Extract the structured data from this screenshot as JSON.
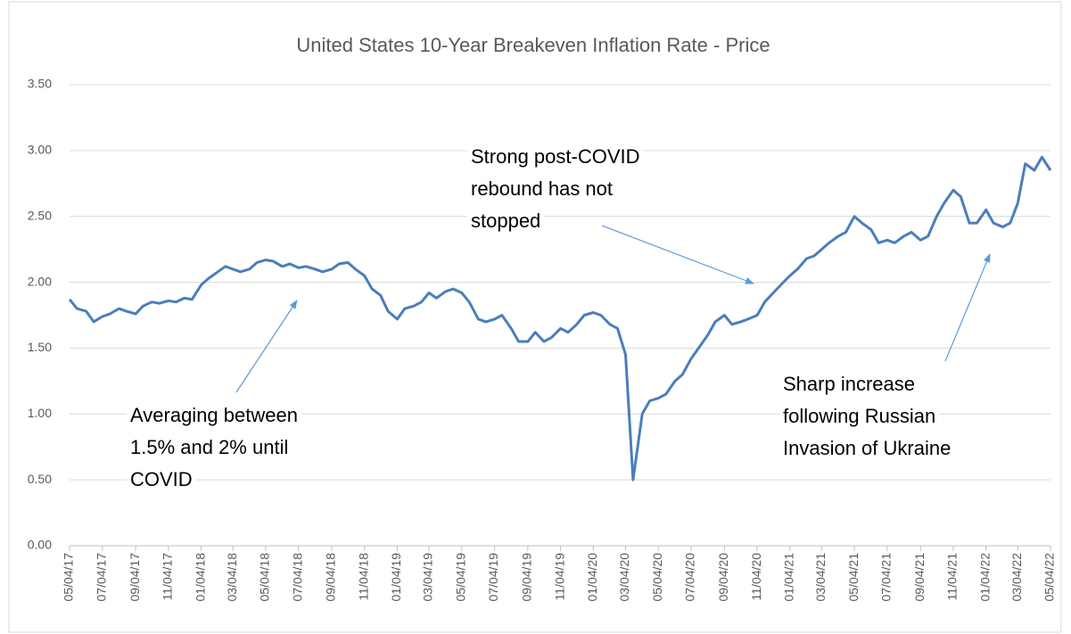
{
  "chart_data": {
    "type": "line",
    "title": "United States 10-Year Breakeven Inflation Rate - Price",
    "x": [
      "05/04/17",
      "05/18/17",
      "06/04/17",
      "06/18/17",
      "07/04/17",
      "07/18/17",
      "08/04/17",
      "08/18/17",
      "09/04/17",
      "09/18/17",
      "10/04/17",
      "10/18/17",
      "11/04/17",
      "11/18/17",
      "12/04/17",
      "12/18/17",
      "01/04/18",
      "01/18/18",
      "02/04/18",
      "02/18/18",
      "03/04/18",
      "03/18/18",
      "04/04/18",
      "04/18/18",
      "05/04/18",
      "05/18/18",
      "06/04/18",
      "06/18/18",
      "07/04/18",
      "07/18/18",
      "08/04/18",
      "08/18/18",
      "09/04/18",
      "09/18/18",
      "10/04/18",
      "10/18/18",
      "11/04/18",
      "11/18/18",
      "12/04/18",
      "12/18/18",
      "01/04/19",
      "01/18/19",
      "02/04/19",
      "02/18/19",
      "03/04/19",
      "03/18/19",
      "04/04/19",
      "04/18/19",
      "05/04/19",
      "05/18/19",
      "06/04/19",
      "06/18/19",
      "07/04/19",
      "07/18/19",
      "08/04/19",
      "08/18/19",
      "09/04/19",
      "09/18/19",
      "10/04/19",
      "10/18/19",
      "11/04/19",
      "11/18/19",
      "12/04/19",
      "12/18/19",
      "01/04/20",
      "01/18/20",
      "02/04/20",
      "02/18/20",
      "03/04/20",
      "03/18/20",
      "04/04/20",
      "04/18/20",
      "05/04/20",
      "05/18/20",
      "06/04/20",
      "06/18/20",
      "07/04/20",
      "07/18/20",
      "08/04/20",
      "08/18/20",
      "09/04/20",
      "09/18/20",
      "10/04/20",
      "10/18/20",
      "11/04/20",
      "11/18/20",
      "12/04/20",
      "12/18/20",
      "01/04/21",
      "01/18/21",
      "02/04/21",
      "02/18/21",
      "03/04/21",
      "03/18/21",
      "04/04/21",
      "04/18/21",
      "05/04/21",
      "05/18/21",
      "06/04/21",
      "06/18/21",
      "07/04/21",
      "07/18/21",
      "08/04/21",
      "08/18/21",
      "09/04/21",
      "09/18/21",
      "10/04/21",
      "10/18/21",
      "11/04/21",
      "11/18/21",
      "12/04/21",
      "12/18/21",
      "01/04/22",
      "01/18/22",
      "02/04/22",
      "02/18/22",
      "03/04/22",
      "03/18/22",
      "04/04/22",
      "04/18/22",
      "05/04/22"
    ],
    "series": [
      {
        "name": "Price",
        "color": "#4a7ebb",
        "values": [
          1.87,
          1.8,
          1.78,
          1.7,
          1.74,
          1.76,
          1.8,
          1.78,
          1.76,
          1.82,
          1.85,
          1.84,
          1.86,
          1.85,
          1.88,
          1.87,
          1.98,
          2.03,
          2.08,
          2.12,
          2.1,
          2.08,
          2.1,
          2.15,
          2.17,
          2.16,
          2.12,
          2.14,
          2.11,
          2.12,
          2.1,
          2.08,
          2.1,
          2.14,
          2.15,
          2.1,
          2.05,
          1.95,
          1.9,
          1.78,
          1.72,
          1.8,
          1.82,
          1.85,
          1.92,
          1.88,
          1.93,
          1.95,
          1.92,
          1.85,
          1.72,
          1.7,
          1.72,
          1.75,
          1.65,
          1.55,
          1.55,
          1.62,
          1.55,
          1.58,
          1.65,
          1.62,
          1.68,
          1.75,
          1.77,
          1.75,
          1.68,
          1.65,
          1.45,
          0.5,
          1.0,
          1.1,
          1.12,
          1.15,
          1.25,
          1.3,
          1.42,
          1.5,
          1.6,
          1.7,
          1.75,
          1.68,
          1.7,
          1.72,
          1.75,
          1.85,
          1.92,
          1.98,
          2.05,
          2.1,
          2.18,
          2.2,
          2.25,
          2.3,
          2.35,
          2.38,
          2.5,
          2.45,
          2.4,
          2.3,
          2.32,
          2.3,
          2.35,
          2.38,
          2.32,
          2.35,
          2.5,
          2.6,
          2.7,
          2.65,
          2.45,
          2.45,
          2.55,
          2.45,
          2.42,
          2.45,
          2.6,
          2.9,
          2.85,
          2.95,
          2.85
        ]
      }
    ],
    "xlim": [
      "05/04/17",
      "05/04/22"
    ],
    "xticks": [
      "05/04/17",
      "07/04/17",
      "09/04/17",
      "11/04/17",
      "01/04/18",
      "03/04/18",
      "05/04/18",
      "07/04/18",
      "09/04/18",
      "11/04/18",
      "01/04/19",
      "03/04/19",
      "05/04/19",
      "07/04/19",
      "09/04/19",
      "11/04/19",
      "01/04/20",
      "03/04/20",
      "05/04/20",
      "07/04/20",
      "09/04/20",
      "11/04/20",
      "01/04/21",
      "03/04/21",
      "05/04/21",
      "07/04/21",
      "09/04/21",
      "11/04/21",
      "01/04/22",
      "03/04/22",
      "05/04/22"
    ],
    "ylim": [
      0,
      3.5
    ],
    "yticks": [
      {
        "value": 0,
        "label": "0.00"
      },
      {
        "value": 0.5,
        "label": "0.50"
      },
      {
        "value": 1,
        "label": "1.00"
      },
      {
        "value": 1.5,
        "label": "1.50"
      },
      {
        "value": 2,
        "label": "2.00"
      },
      {
        "value": 2.5,
        "label": "2.50"
      },
      {
        "value": 3,
        "label": "3.00"
      },
      {
        "value": 3.5,
        "label": "3.50"
      }
    ],
    "grid": true,
    "annotations": [
      {
        "lines": [
          "Averaging between",
          "1.5% and 2% until",
          "COVID"
        ]
      },
      {
        "lines": [
          "Strong post-COVID",
          "rebound has not",
          "stopped"
        ]
      },
      {
        "lines": [
          "Sharp increase",
          "following Russian",
          "Invasion of Ukraine"
        ]
      }
    ]
  }
}
